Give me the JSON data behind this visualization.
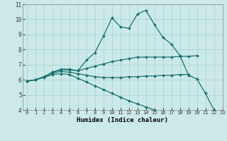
{
  "xlabel": "Humidex (Indice chaleur)",
  "bg_color": "#cce9e9",
  "grid_color": "#aad4d4",
  "line_color": "#1a7070",
  "xlim": [
    -0.5,
    23
  ],
  "ylim": [
    4,
    11
  ],
  "yticks": [
    4,
    5,
    6,
    7,
    8,
    9,
    10,
    11
  ],
  "xticks": [
    0,
    1,
    2,
    3,
    4,
    5,
    6,
    7,
    8,
    9,
    10,
    11,
    12,
    13,
    14,
    15,
    16,
    17,
    18,
    19,
    20,
    21,
    22,
    23
  ],
  "series": [
    {
      "x": [
        0,
        1,
        2,
        3,
        4,
        5,
        6,
        7,
        8,
        9,
        10,
        11,
        12,
        13,
        14,
        15,
        16,
        17,
        18,
        19,
        20,
        21,
        22
      ],
      "y": [
        5.9,
        6.0,
        6.2,
        6.5,
        6.7,
        6.7,
        6.6,
        7.3,
        7.8,
        8.9,
        10.1,
        9.5,
        9.4,
        10.35,
        10.6,
        9.65,
        8.8,
        8.35,
        7.6,
        6.3,
        6.05,
        5.1,
        4.0
      ]
    },
    {
      "x": [
        0,
        1,
        2,
        3,
        4,
        5,
        6,
        7,
        8,
        9,
        10,
        11,
        12,
        13,
        14,
        15,
        16,
        17,
        18,
        19,
        20
      ],
      "y": [
        5.9,
        6.0,
        6.2,
        6.5,
        6.65,
        6.65,
        6.6,
        6.75,
        6.9,
        7.05,
        7.2,
        7.3,
        7.4,
        7.5,
        7.5,
        7.5,
        7.5,
        7.5,
        7.55,
        7.55,
        7.6
      ]
    },
    {
      "x": [
        0,
        1,
        2,
        3,
        4,
        5,
        6,
        7,
        8,
        9,
        10,
        11,
        12,
        13,
        14,
        15,
        16,
        17,
        18,
        19
      ],
      "y": [
        5.9,
        6.0,
        6.2,
        6.45,
        6.55,
        6.5,
        6.4,
        6.3,
        6.2,
        6.15,
        6.15,
        6.15,
        6.2,
        6.2,
        6.25,
        6.25,
        6.3,
        6.3,
        6.35,
        6.35
      ]
    },
    {
      "x": [
        0,
        1,
        2,
        3,
        4,
        5,
        6,
        7,
        8,
        9,
        10,
        11,
        12,
        13,
        14,
        15,
        16,
        17
      ],
      "y": [
        5.9,
        6.0,
        6.15,
        6.35,
        6.4,
        6.35,
        6.1,
        5.85,
        5.6,
        5.35,
        5.1,
        4.85,
        4.6,
        4.4,
        4.2,
        4.0,
        3.85,
        null
      ]
    }
  ]
}
